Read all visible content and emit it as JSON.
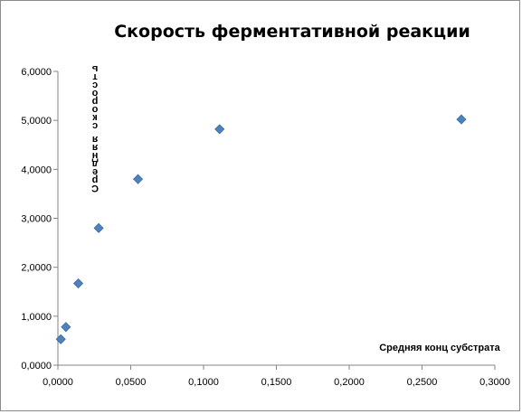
{
  "chart_data": {
    "type": "scatter",
    "title": "Скорость ферментативной реакции",
    "xlabel": "Средняя конц субстрата",
    "ylabel": "Средняя скорость",
    "xlim": [
      0,
      0.3
    ],
    "ylim": [
      0,
      6
    ],
    "x_ticks": [
      "0,0000",
      "0,0500",
      "0,1000",
      "0,1500",
      "0,2000",
      "0,2500",
      "0,3000"
    ],
    "y_ticks": [
      "0,0000",
      "1,0000",
      "2,0000",
      "3,0000",
      "4,0000",
      "5,0000",
      "6,0000"
    ],
    "grid": false,
    "legend": "none",
    "marker_color": "#4f81bd",
    "series": [
      {
        "points": [
          {
            "x": 0.002,
            "y": 0.53
          },
          {
            "x": 0.0055,
            "y": 0.78
          },
          {
            "x": 0.014,
            "y": 1.67
          },
          {
            "x": 0.028,
            "y": 2.8
          },
          {
            "x": 0.055,
            "y": 3.8
          },
          {
            "x": 0.111,
            "y": 4.82
          },
          {
            "x": 0.277,
            "y": 5.02
          }
        ]
      }
    ]
  }
}
